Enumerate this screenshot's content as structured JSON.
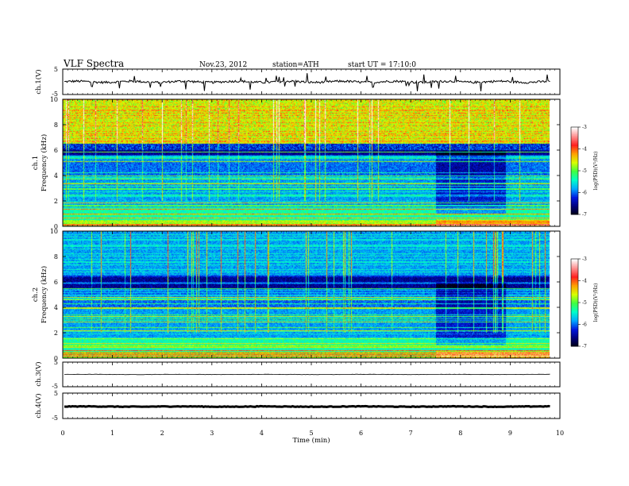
{
  "header": {
    "title": "VLF  Spectra",
    "date": "Nov.23, 2012",
    "station": "station=ATH",
    "start": "start  UT =   17:10:0"
  },
  "chart_data": {
    "type": "heatmap",
    "xlabel": "Time  (min)",
    "xlim": [
      0,
      10
    ],
    "x_ticks": [
      "0",
      "1",
      "2",
      "3",
      "4",
      "5",
      "6",
      "7",
      "8",
      "9",
      "10"
    ],
    "data_end_min": 9.8,
    "panels": [
      {
        "id": "ch1_waveform",
        "kind": "line",
        "ylabel": "ch.1(V)",
        "ylim": [
          -5,
          5
        ],
        "y_ticks": [
          "5",
          "-5"
        ],
        "level": 0.0,
        "noise": "moderate"
      },
      {
        "id": "ch1_spectrogram",
        "kind": "spectrogram",
        "ylabel_top": "ch.1",
        "ylabel": "Frequency  (kHz)",
        "ylim": [
          0,
          10
        ],
        "y_ticks": [
          "0",
          "2",
          "4",
          "6",
          "8",
          "10"
        ],
        "colorbar": {
          "label": "log(PSD)(V²/Hz)",
          "range": [
            -7,
            -3
          ],
          "ticks": [
            "-3",
            "-4",
            "-5",
            "-6",
            "-7"
          ]
        },
        "regime_change_min": [
          7.5,
          8.9
        ]
      },
      {
        "id": "ch2_spectrogram",
        "kind": "spectrogram",
        "ylabel_top": "ch.2",
        "ylabel": "Frequency  (kHz)",
        "ylim": [
          0,
          10
        ],
        "y_ticks": [
          "0",
          "2",
          "4",
          "6",
          "8",
          "10"
        ],
        "colorbar": {
          "label": "log(PSD)(V²/Hz)",
          "range": [
            -7,
            -3
          ],
          "ticks": [
            "-3",
            "-4",
            "-5",
            "-6",
            "-7"
          ]
        },
        "regime_change_min": [
          7.5,
          8.9
        ]
      },
      {
        "id": "ch3_waveform",
        "kind": "line",
        "ylabel": "ch.3(V)",
        "ylim": [
          -5,
          5
        ],
        "y_ticks": [
          "5",
          "-5"
        ],
        "level": 0.0,
        "noise": "low"
      },
      {
        "id": "ch4_waveform",
        "kind": "line",
        "ylabel": "ch.4(V)",
        "ylim": [
          -5,
          5
        ],
        "y_ticks": [
          "5",
          "-5"
        ],
        "level": -0.3,
        "noise": "thick"
      }
    ],
    "colorscale": [
      "#000010",
      "#00007a",
      "#0018e0",
      "#00a8ff",
      "#00ffc8",
      "#40ff40",
      "#d8ff00",
      "#ffa000",
      "#ff2020",
      "#ff9090",
      "#ffffff"
    ]
  }
}
